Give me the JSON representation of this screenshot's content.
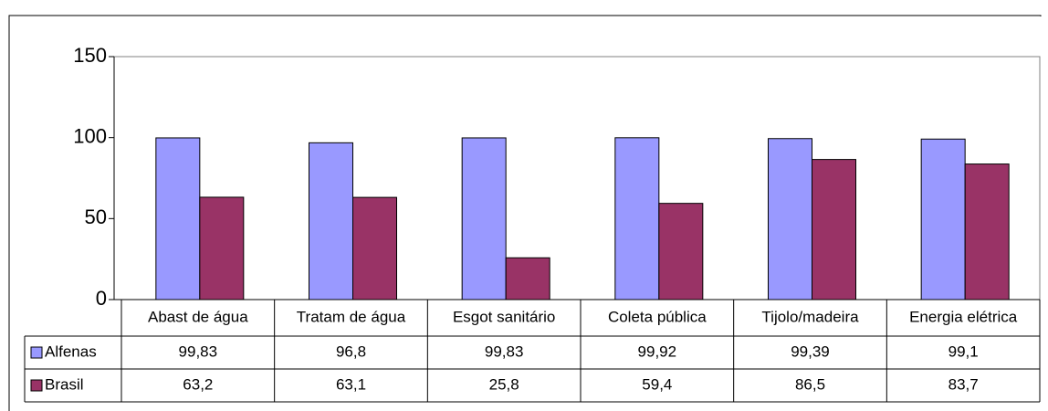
{
  "chart_data": {
    "type": "bar",
    "categories": [
      "Abast de água",
      "Tratam de água",
      "Esgot sanitário",
      "Coleta pública",
      "Tijolo/madeira",
      "Energia elétrica"
    ],
    "series": [
      {
        "name": "Alfenas",
        "color": "#9999ff",
        "values": [
          99.83,
          96.8,
          99.83,
          99.92,
          99.39,
          99.1
        ],
        "value_labels": [
          "99,83",
          "96,8",
          "99,83",
          "99,92",
          "99,39",
          "99,1"
        ]
      },
      {
        "name": "Brasil",
        "color": "#993366",
        "values": [
          63.2,
          63.1,
          25.8,
          59.4,
          86.5,
          83.7
        ],
        "value_labels": [
          "63,2",
          "63,1",
          "25,8",
          "59,4",
          "86,5",
          "83,7"
        ]
      }
    ],
    "ylim": [
      0,
      150
    ],
    "yticks": [
      0,
      50,
      100,
      150
    ],
    "grid": false,
    "legend": "data-table"
  }
}
